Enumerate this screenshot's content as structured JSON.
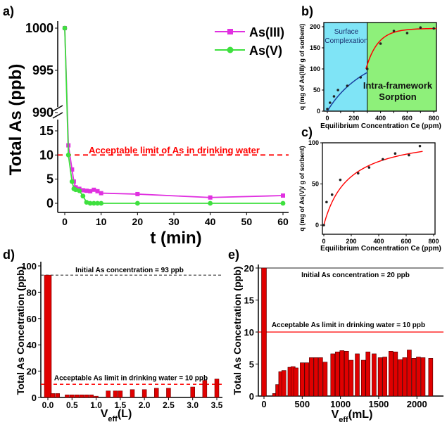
{
  "colors": {
    "as3": "#e030e0",
    "as5": "#3ee03e",
    "limit": "#ff0000",
    "bar": "#e00000",
    "fit": "#ff0000",
    "fit_b_low": "#1a40a0",
    "region_surface": "#7fe4f6",
    "region_intra": "#8ef07a"
  },
  "chart_data": [
    {
      "id": "a",
      "panel_label": "a)",
      "type": "line",
      "xlabel": "t (min)",
      "ylabel": "Total As (ppb)",
      "xlim": [
        0,
        60
      ],
      "x_ticks": [
        "0",
        "10",
        "20",
        "30",
        "40",
        "50",
        "60"
      ],
      "y_ticks_lower": [
        "0",
        "5",
        "10",
        "15"
      ],
      "y_ticks_upper": [
        "990",
        "995",
        "1000"
      ],
      "broken_y_axis": true,
      "legend_position": "top-right",
      "annotation": "Acceptable limit of As in drinking water",
      "limit_value": 10,
      "series": [
        {
          "name": "As(III)",
          "x": [
            0,
            1,
            2,
            2.5,
            3,
            4,
            5,
            6,
            7,
            8,
            9,
            10,
            20,
            40,
            60
          ],
          "y": [
            1000,
            12,
            7,
            4.5,
            3.3,
            3,
            2.7,
            2.6,
            2.5,
            2.8,
            2.5,
            2.1,
            1.9,
            1.2,
            1.6
          ]
        },
        {
          "name": "As(V)",
          "x": [
            0,
            1,
            2,
            2.5,
            3,
            4,
            5,
            6,
            7,
            8,
            9,
            10,
            20,
            40,
            60
          ],
          "y": [
            1000,
            10,
            4.5,
            3,
            2.8,
            2.6,
            1.5,
            0.2,
            0,
            0,
            0,
            0,
            0,
            0,
            0
          ]
        }
      ]
    },
    {
      "id": "b",
      "panel_label": "b)",
      "type": "scatter",
      "xlabel": "Equilibrium Concentration Ce (ppm)",
      "ylabel": "q (mg of As(III)/ g of sorbent)",
      "xlim": [
        0,
        800
      ],
      "ylim": [
        0,
        200
      ],
      "x_ticks": [
        "0",
        "100",
        "200",
        "300",
        "400",
        "500",
        "600",
        "700",
        "800"
      ],
      "y_ticks": [
        "0",
        "50",
        "100",
        "150",
        "200"
      ],
      "regions": [
        {
          "label_lines": [
            "Surface",
            "Complexation"
          ],
          "x_range": [
            0,
            300
          ]
        },
        {
          "label_lines": [
            "Intra-framework",
            "Sorption"
          ],
          "x_range": [
            300,
            820
          ]
        }
      ],
      "x": [
        0,
        20,
        50,
        80,
        150,
        250,
        300,
        400,
        500,
        600,
        700,
        800
      ],
      "y": [
        5,
        20,
        35,
        50,
        60,
        80,
        100,
        160,
        190,
        185,
        198,
        196
      ]
    },
    {
      "id": "c",
      "panel_label": "c)",
      "type": "scatter",
      "xlabel": "Equilibrium Concentration Ce (ppm)",
      "ylabel": "q (mg of As(V)/ g of sorbent)",
      "xlim": [
        0,
        800
      ],
      "ylim": [
        0,
        100
      ],
      "x_ticks": [
        "0",
        "200",
        "400",
        "600",
        "800"
      ],
      "y_ticks": [
        "0",
        "50",
        "100"
      ],
      "x": [
        0,
        20,
        60,
        120,
        250,
        330,
        430,
        520,
        620,
        700
      ],
      "y": [
        0,
        28,
        37,
        55,
        63,
        70,
        80,
        87,
        85,
        96
      ]
    },
    {
      "id": "d",
      "panel_label": "d)",
      "type": "bar",
      "xlabel": "V",
      "xlabel_sub": "eff",
      "xlabel_suffix": "(L)",
      "ylabel": "Total As Concetration (ppb)",
      "xlim": [
        0,
        3.5
      ],
      "ylim": [
        0,
        100
      ],
      "x_ticks": [
        "0.0",
        "0.5",
        "1.0",
        "1.5",
        "2.0",
        "2.5",
        "3.0",
        "3.5"
      ],
      "y_ticks": [
        "0",
        "20",
        "40",
        "60",
        "80",
        "100"
      ],
      "initial_text": "Initial As concentration = 93 ppb",
      "initial_value": 93,
      "limit_text": "Acceptable As limit in drinking water = 10 ppb",
      "limit_value": 10,
      "x": [
        0.0,
        0.1,
        0.2,
        0.4,
        0.5,
        0.6,
        0.7,
        0.8,
        0.9,
        1.0,
        1.25,
        1.4,
        1.5,
        1.75,
        2.0,
        2.25,
        2.5,
        3.0,
        3.25,
        3.5
      ],
      "values": [
        93,
        3,
        3,
        2,
        2,
        2,
        2,
        2,
        2,
        1,
        5,
        5,
        5,
        6,
        6,
        7,
        7,
        8,
        13,
        14
      ]
    },
    {
      "id": "e",
      "panel_label": "e)",
      "type": "bar",
      "xlabel": "V",
      "xlabel_sub": "eff",
      "xlabel_suffix": "(mL)",
      "ylabel": "Total As Concetration (ppb)",
      "xlim": [
        0,
        2200
      ],
      "ylim": [
        0,
        20
      ],
      "x_ticks": [
        "0",
        "500",
        "1000",
        "1500",
        "2000"
      ],
      "y_ticks": [
        "0",
        "5",
        "10",
        "15",
        "20"
      ],
      "initial_text": "Initial As concentration = 20 ppb",
      "initial_value": 20,
      "limit_text": "Acceptable As limit in drinking water = 10 ppb",
      "limit_value": 10,
      "x": [
        0,
        140,
        180,
        220,
        260,
        340,
        380,
        420,
        500,
        560,
        620,
        680,
        740,
        800,
        900,
        960,
        1020,
        1080,
        1140,
        1220,
        1300,
        1360,
        1440,
        1520,
        1580,
        1660,
        1720,
        1780,
        1840,
        1900,
        1960,
        2020,
        2080,
        2180
      ],
      "values": [
        20,
        0.4,
        1.8,
        3.8,
        4,
        4.5,
        4.6,
        4.4,
        5.2,
        5.2,
        6,
        6,
        6,
        5.3,
        6.6,
        6.9,
        7.1,
        7,
        5.6,
        6.6,
        5.6,
        6.9,
        6.6,
        6,
        6.1,
        7,
        6.9,
        5.7,
        6,
        7.2,
        5.9,
        6.1,
        6,
        5.9
      ]
    }
  ]
}
